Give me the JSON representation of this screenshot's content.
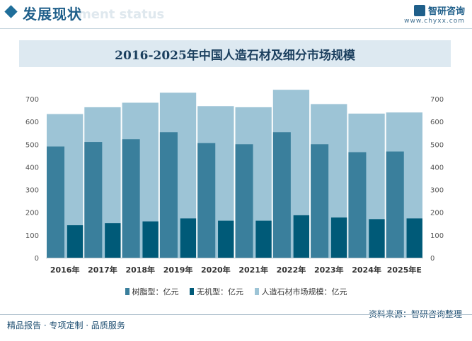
{
  "header": {
    "title": "发展现状",
    "subtitle": "ment status",
    "brand_name": "智研咨询",
    "brand_url": "www.chyxx.com"
  },
  "chart_data": {
    "type": "bar",
    "title": "2016-2025年中国人造石材及细分市场规模",
    "categories": [
      "2016年",
      "2017年",
      "2018年",
      "2019年",
      "2020年",
      "2021年",
      "2022年",
      "2023年",
      "2024年",
      "2025年E"
    ],
    "series": [
      {
        "name": "树脂型：亿元",
        "color": "#3a7f9c",
        "values": [
          490,
          510,
          522,
          553,
          505,
          500,
          553,
          500,
          465,
          468
        ]
      },
      {
        "name": "无机型：亿元",
        "color": "#005a78",
        "values": [
          143,
          152,
          160,
          173,
          163,
          163,
          187,
          177,
          170,
          173
        ]
      },
      {
        "name": "人造石材市场规模：亿元",
        "color": "#9dc4d6",
        "values": [
          633,
          663,
          683,
          727,
          668,
          663,
          740,
          677,
          635,
          640
        ]
      }
    ],
    "ylim": [
      0,
      700
    ],
    "yticks": [
      0,
      100,
      200,
      300,
      400,
      500,
      600,
      700
    ],
    "secondary_axis": true,
    "legend_position": "bottom",
    "grid": false
  },
  "footer": {
    "left": "精品报告 · 专项定制 · 品质服务",
    "source": "资料来源：智研咨询整理"
  }
}
